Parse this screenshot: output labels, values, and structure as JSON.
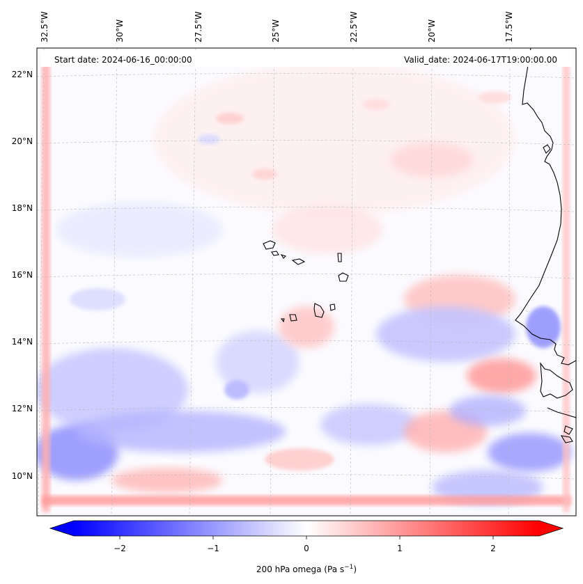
{
  "header": {
    "start_date": "Start date: 2024-06-16_00:00:00",
    "valid_date": "Valid_date: 2024-06-17T19:00:00.00"
  },
  "map": {
    "longitude_labels": [
      "32.5°W",
      "30°W",
      "27.5°W",
      "25°W",
      "22.5°W",
      "20°W",
      "17.5°W"
    ],
    "latitude_labels": [
      "22°N",
      "20°N",
      "18°N",
      "16°N",
      "14°N",
      "12°N",
      "10°N"
    ],
    "gridlines": true,
    "field": "200 hPa vertical velocity (omega) shaded, bwr colormap",
    "colors": {
      "negative": "#0000ff",
      "zero": "#ffffff",
      "positive": "#ff0000",
      "coastline": "#000000"
    }
  },
  "colorbar": {
    "ticks": [
      "−2",
      "−1",
      "0",
      "1",
      "2"
    ],
    "range": [
      -2.7,
      2.7
    ],
    "extend": "both",
    "label_main": "200 hPa omega (Pa s",
    "label_sup": "−1",
    "label_tail": ")"
  }
}
